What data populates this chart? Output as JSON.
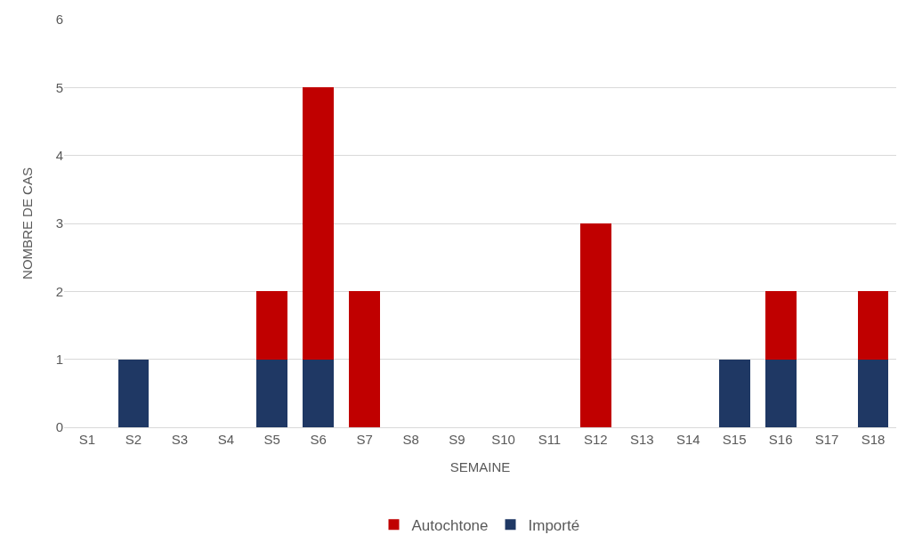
{
  "chart_data": {
    "type": "bar",
    "stacked": true,
    "xlabel": "SEMAINE",
    "ylabel": "NOMBRE DE CAS",
    "categories": [
      "S1",
      "S2",
      "S3",
      "S4",
      "S5",
      "S6",
      "S7",
      "S8",
      "S9",
      "S10",
      "S11",
      "S12",
      "S13",
      "S14",
      "S15",
      "S16",
      "S17",
      "S18"
    ],
    "series": [
      {
        "name": "Importé",
        "color": "#1f3864",
        "values": [
          0,
          1,
          0,
          0,
          1,
          1,
          0,
          0,
          0,
          0,
          0,
          0,
          0,
          0,
          1,
          1,
          0,
          1
        ]
      },
      {
        "name": "Autochtone",
        "color": "#c00000",
        "values": [
          0,
          0,
          0,
          0,
          1,
          4,
          2,
          0,
          0,
          0,
          0,
          3,
          0,
          0,
          0,
          1,
          0,
          1
        ]
      }
    ],
    "ylim": [
      0,
      6
    ],
    "yticks": [
      0,
      1,
      2,
      3,
      4,
      5,
      6
    ],
    "grid": "y",
    "legend": "bottom"
  }
}
